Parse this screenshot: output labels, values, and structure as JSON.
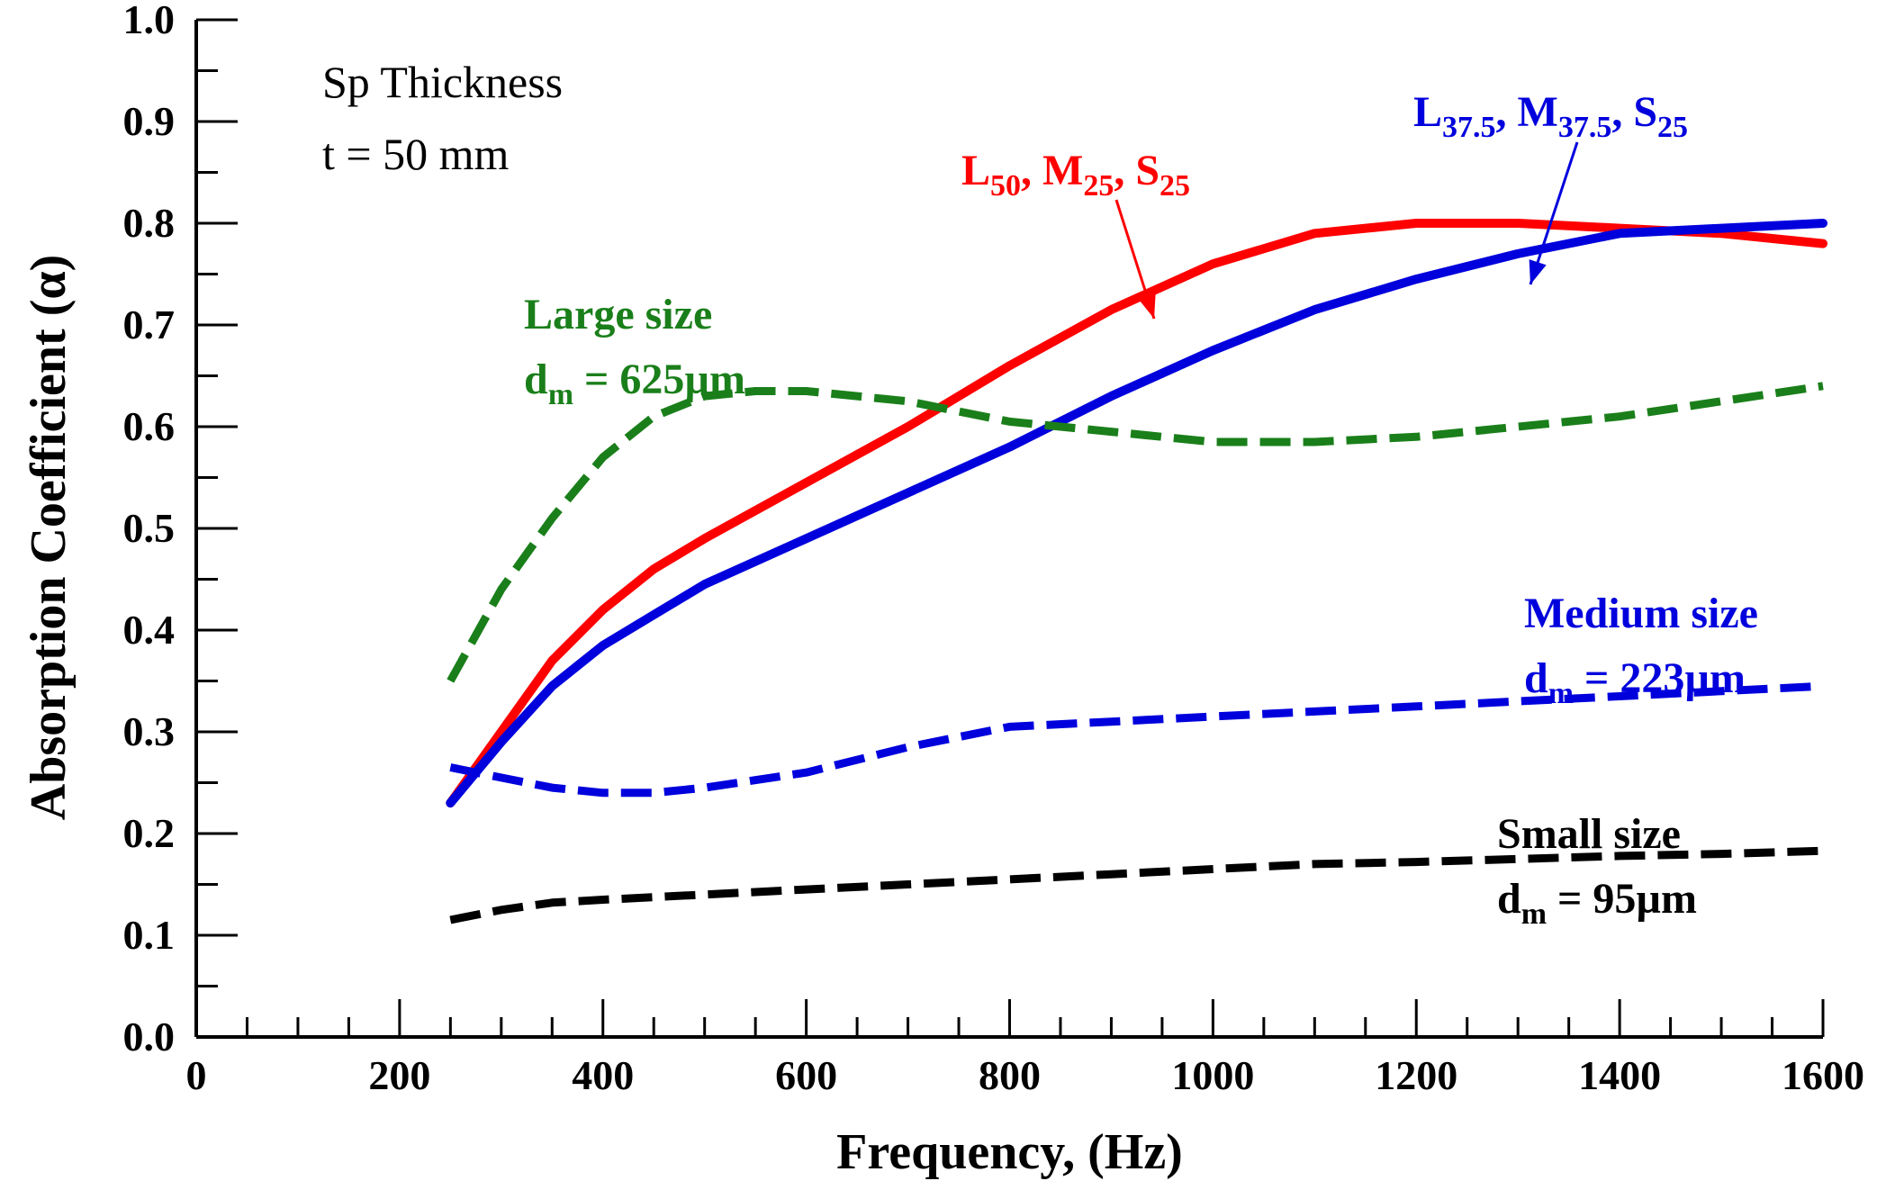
{
  "chart_data": {
    "type": "line",
    "title": "",
    "xlabel": "Frequency, (Hz)",
    "ylabel": "Absorption Coefficient (α)",
    "xlim": [
      0,
      1600
    ],
    "ylim": [
      0,
      1.0
    ],
    "x_ticks": [
      "0",
      "200",
      "400",
      "600",
      "800",
      "1000",
      "1200",
      "1400",
      "1600"
    ],
    "y_ticks": [
      "0.0",
      "0.1",
      "0.2",
      "0.3",
      "0.4",
      "0.5",
      "0.6",
      "0.7",
      "0.8",
      "0.9",
      "1.0"
    ],
    "note": [
      "Sp Thickness",
      "t = 50 mm"
    ],
    "colors": {
      "red": "#ff0000",
      "blue": "#0000dd",
      "green": "#1a7f1a",
      "black": "#000000"
    },
    "series": [
      {
        "name": "L50, M25, S25",
        "label_parts": [
          [
            "L",
            "50"
          ],
          [
            "M",
            "25"
          ],
          [
            "S",
            "25"
          ]
        ],
        "color": "red",
        "style": "solid",
        "x": [
          250,
          300,
          350,
          400,
          450,
          500,
          600,
          700,
          800,
          900,
          1000,
          1100,
          1200,
          1300,
          1400,
          1500,
          1600
        ],
        "values": [
          0.23,
          0.3,
          0.37,
          0.42,
          0.46,
          0.49,
          0.545,
          0.6,
          0.66,
          0.715,
          0.76,
          0.79,
          0.8,
          0.8,
          0.795,
          0.79,
          0.78
        ]
      },
      {
        "name": "L37.5, M37.5, S25",
        "label_parts": [
          [
            "L",
            "37.5"
          ],
          [
            "M",
            "37.5"
          ],
          [
            "S",
            "25"
          ]
        ],
        "color": "blue",
        "style": "solid",
        "x": [
          250,
          300,
          350,
          400,
          450,
          500,
          600,
          700,
          800,
          900,
          1000,
          1100,
          1200,
          1300,
          1400,
          1500,
          1600
        ],
        "values": [
          0.23,
          0.29,
          0.345,
          0.385,
          0.415,
          0.445,
          0.49,
          0.535,
          0.58,
          0.63,
          0.675,
          0.715,
          0.745,
          0.77,
          0.79,
          0.795,
          0.8
        ]
      },
      {
        "name": "Large size",
        "sublabel": [
          "d",
          "m",
          " = 625µm"
        ],
        "color": "green",
        "style": "dashed",
        "x": [
          250,
          300,
          350,
          400,
          450,
          500,
          550,
          600,
          700,
          800,
          900,
          1000,
          1100,
          1200,
          1300,
          1400,
          1500,
          1600
        ],
        "values": [
          0.35,
          0.44,
          0.51,
          0.57,
          0.61,
          0.63,
          0.635,
          0.635,
          0.625,
          0.605,
          0.595,
          0.585,
          0.585,
          0.59,
          0.6,
          0.61,
          0.625,
          0.64
        ]
      },
      {
        "name": "Medium size",
        "sublabel": [
          "d",
          "m",
          " = 223µm"
        ],
        "color": "blue",
        "style": "dashed",
        "x": [
          250,
          300,
          350,
          400,
          450,
          500,
          600,
          700,
          800,
          900,
          1000,
          1100,
          1200,
          1300,
          1400,
          1500,
          1600
        ],
        "values": [
          0.265,
          0.255,
          0.245,
          0.24,
          0.24,
          0.245,
          0.26,
          0.285,
          0.305,
          0.31,
          0.315,
          0.32,
          0.325,
          0.33,
          0.335,
          0.34,
          0.345
        ]
      },
      {
        "name": "Small size",
        "sublabel": [
          "d",
          "m",
          " = 95µm"
        ],
        "color": "black",
        "style": "dashed",
        "x": [
          250,
          300,
          350,
          400,
          500,
          600,
          700,
          800,
          900,
          1000,
          1100,
          1200,
          1300,
          1400,
          1500,
          1600
        ],
        "values": [
          0.115,
          0.125,
          0.132,
          0.135,
          0.14,
          0.145,
          0.15,
          0.155,
          0.16,
          0.165,
          0.17,
          0.172,
          0.175,
          0.178,
          0.18,
          0.183
        ]
      }
    ]
  }
}
